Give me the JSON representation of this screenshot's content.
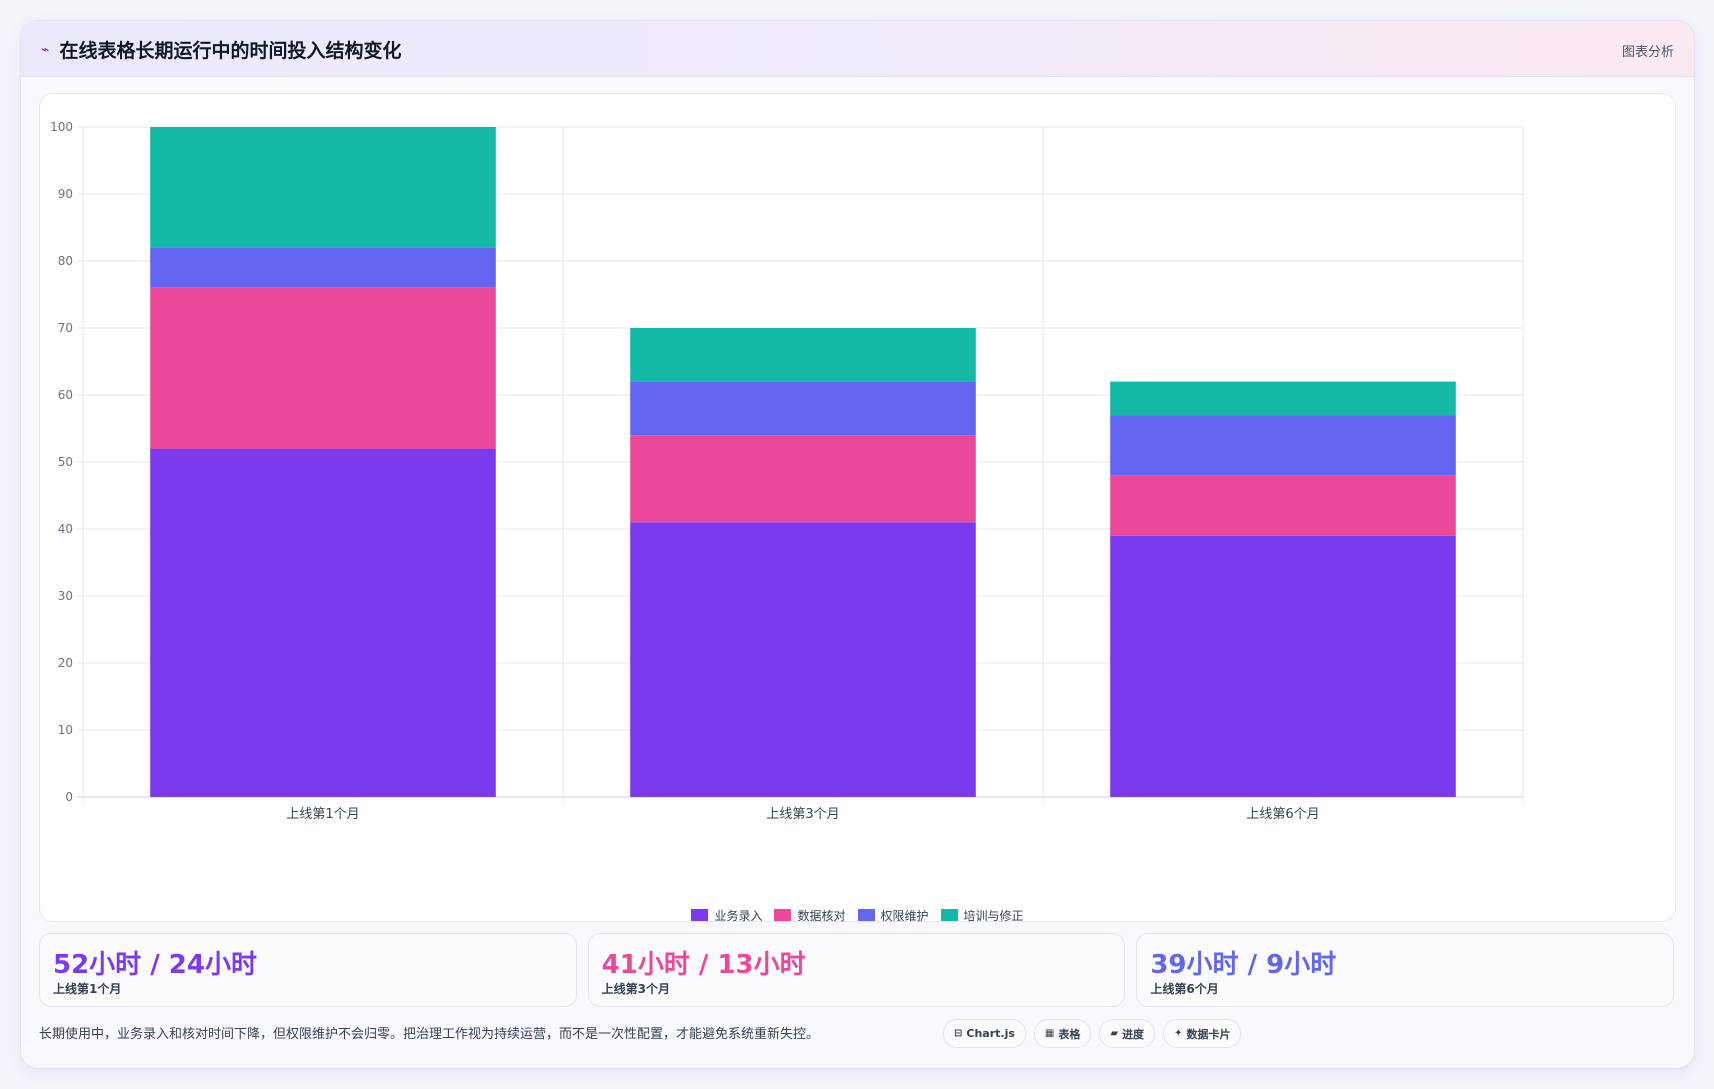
{
  "header": {
    "icon": "chart-trend-icon",
    "title": "在线表格长期运行中的时间投入结构变化",
    "action": "图表分析"
  },
  "chart_data": {
    "type": "bar",
    "stacked": true,
    "categories": [
      "上线第1个月",
      "上线第3个月",
      "上线第6个月"
    ],
    "series": [
      {
        "name": "业务录入",
        "color": "#7c3aed",
        "values": [
          52,
          41,
          39
        ]
      },
      {
        "name": "数据核对",
        "color": "#ec4899",
        "values": [
          24,
          13,
          9
        ]
      },
      {
        "name": "权限维护",
        "color": "#6366f1",
        "values": [
          6,
          8,
          9
        ]
      },
      {
        "name": "培训与修正",
        "color": "#14b8a6",
        "values": [
          18,
          8,
          5
        ]
      }
    ],
    "ylim": [
      0,
      100
    ],
    "yticks": [
      0,
      10,
      20,
      30,
      40,
      50,
      60,
      70,
      80,
      90,
      100
    ],
    "grid": true,
    "legend_position": "bottom"
  },
  "stats": [
    {
      "value": "52小时 / 24小时",
      "label": "上线第1个月",
      "color": "#7c3aed"
    },
    {
      "value": "41小时 / 13小时",
      "label": "上线第3个月",
      "color": "#ec4899"
    },
    {
      "value": "39小时 / 9小时",
      "label": "上线第6个月",
      "color": "#6366f1"
    }
  ],
  "footer": {
    "note": "长期使用中，业务录入和核对时间下降，但权限维护不会归零。把治理工作视为持续运营，而不是一次性配置，才能避免系统重新失控。",
    "chips": [
      {
        "icon": "⊟",
        "label": "Chart.js"
      },
      {
        "icon": "▦",
        "label": "表格"
      },
      {
        "icon": "▰",
        "label": "进度"
      },
      {
        "icon": "✦",
        "label": "数据卡片"
      }
    ]
  }
}
